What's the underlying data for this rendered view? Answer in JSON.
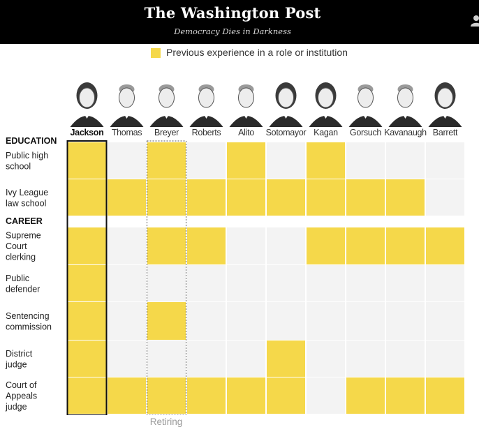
{
  "masthead": {
    "title": "The Washington Post",
    "tagline": "Democracy Dies in Darkness"
  },
  "legend": {
    "label": "Previous experience in a role or institution"
  },
  "annotation": {
    "retiring": "Retiring"
  },
  "colors": {
    "filled": "#f5d84a",
    "empty": "#f3f3f3",
    "header_bg": "#000000"
  },
  "chart_data": {
    "type": "table",
    "title": "Previous experience in a role or institution",
    "justices": [
      "Jackson",
      "Thomas",
      "Breyer",
      "Roberts",
      "Alito",
      "Sotomayor",
      "Kagan",
      "Gorsuch",
      "Kavanaugh",
      "Barrett"
    ],
    "highlighted": "Jackson",
    "retiring": "Breyer",
    "sections": [
      {
        "name": "EDUCATION",
        "rows": [
          {
            "label": [
              "Public high",
              "school"
            ],
            "values": [
              1,
              0,
              1,
              0,
              1,
              0,
              1,
              0,
              0,
              0
            ]
          },
          {
            "label": [
              "Ivy League",
              "law school"
            ],
            "values": [
              1,
              1,
              1,
              1,
              1,
              1,
              1,
              1,
              1,
              0
            ]
          }
        ]
      },
      {
        "name": "CAREER",
        "rows": [
          {
            "label": [
              "Supreme",
              "Court",
              "clerking"
            ],
            "values": [
              1,
              0,
              1,
              1,
              0,
              0,
              1,
              1,
              1,
              1
            ]
          },
          {
            "label": [
              "Public",
              "defender"
            ],
            "values": [
              1,
              0,
              0,
              0,
              0,
              0,
              0,
              0,
              0,
              0
            ]
          },
          {
            "label": [
              "Sentencing",
              "commission"
            ],
            "values": [
              1,
              0,
              1,
              0,
              0,
              0,
              0,
              0,
              0,
              0
            ]
          },
          {
            "label": [
              "District",
              "judge"
            ],
            "values": [
              1,
              0,
              0,
              0,
              0,
              1,
              0,
              0,
              0,
              0
            ]
          },
          {
            "label": [
              "Court of",
              "Appeals",
              "judge"
            ],
            "values": [
              1,
              1,
              1,
              1,
              1,
              1,
              0,
              1,
              1,
              1
            ]
          }
        ]
      }
    ]
  }
}
